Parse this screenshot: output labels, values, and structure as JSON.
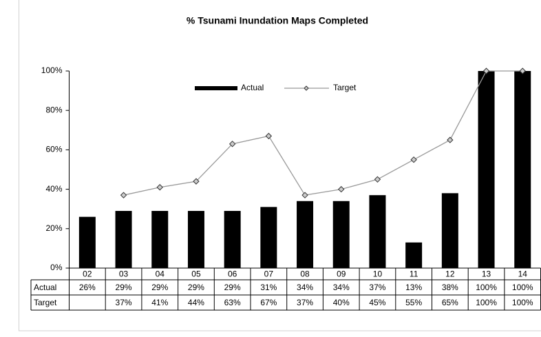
{
  "chart_data": {
    "type": "bar",
    "title": "% Tsunami Inundation Maps Completed",
    "categories": [
      "02",
      "03",
      "04",
      "05",
      "06",
      "07",
      "08",
      "09",
      "10",
      "11",
      "12",
      "13",
      "14"
    ],
    "series": [
      {
        "name": "Actual",
        "type": "bar",
        "color": "#000000",
        "values": [
          26,
          29,
          29,
          29,
          29,
          31,
          34,
          34,
          37,
          13,
          38,
          100,
          100
        ],
        "value_labels": [
          "26%",
          "29%",
          "29%",
          "29%",
          "29%",
          "31%",
          "34%",
          "34%",
          "37%",
          "13%",
          "38%",
          "100%",
          "100%"
        ]
      },
      {
        "name": "Target",
        "type": "line",
        "color": "#999999",
        "values": [
          null,
          37,
          41,
          44,
          63,
          67,
          37,
          40,
          45,
          55,
          65,
          100,
          100
        ],
        "value_labels": [
          null,
          "37%",
          "41%",
          "44%",
          "63%",
          "67%",
          "37%",
          "40%",
          "45%",
          "55%",
          "65%",
          "100%",
          "100%"
        ]
      }
    ],
    "ylim": [
      0,
      100
    ],
    "yticks": [
      {
        "value": 0,
        "label": "0%"
      },
      {
        "value": 20,
        "label": "20%"
      },
      {
        "value": 40,
        "label": "40%"
      },
      {
        "value": 60,
        "label": "60%"
      },
      {
        "value": 80,
        "label": "80%"
      },
      {
        "value": 100,
        "label": "100%"
      }
    ],
    "grid": false,
    "legend": "top"
  }
}
